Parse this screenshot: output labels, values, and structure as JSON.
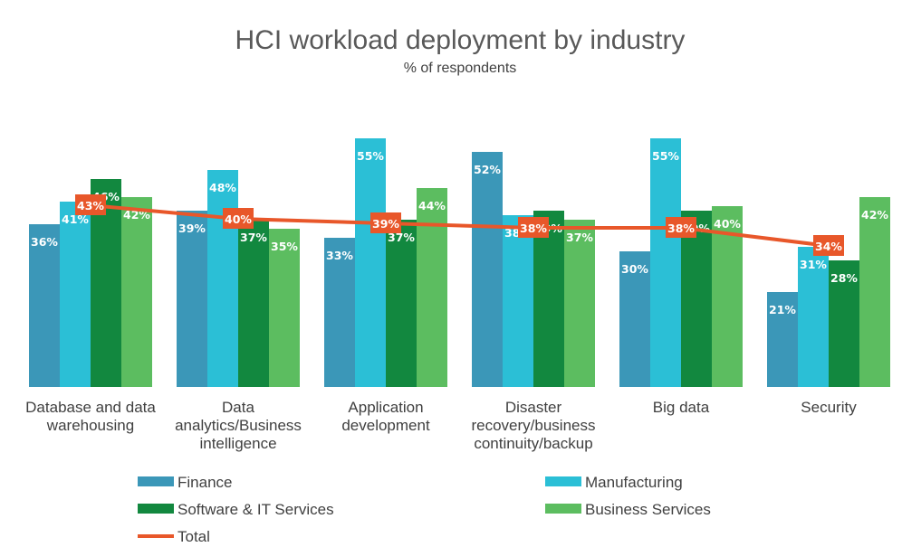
{
  "chart_data": {
    "type": "bar",
    "title": "HCI workload deployment by industry",
    "subtitle": "% of respondents",
    "categories": [
      [
        "Database and data",
        "warehousing"
      ],
      [
        "Data",
        "analytics/Business",
        "intelligence"
      ],
      [
        "Application",
        "development"
      ],
      [
        "Disaster",
        "recovery/business",
        "continuity/backup"
      ],
      [
        "Big data"
      ],
      [
        "Security"
      ]
    ],
    "series": [
      {
        "name": "Finance",
        "color": "#3b97b8",
        "values": [
          36,
          39,
          33,
          52,
          30,
          21
        ]
      },
      {
        "name": "Manufacturing",
        "color": "#2bbfd6",
        "values": [
          41,
          48,
          55,
          38,
          55,
          31
        ]
      },
      {
        "name": "Software & IT Services",
        "color": "#12883f",
        "values": [
          46,
          37,
          37,
          39,
          39,
          28
        ]
      },
      {
        "name": "Business Services",
        "color": "#5cbd60",
        "values": [
          42,
          35,
          44,
          37,
          40,
          42
        ]
      }
    ],
    "line_series": {
      "name": "Total",
      "color": "#e8572a",
      "values": [
        43,
        40,
        39,
        38,
        38,
        34
      ]
    },
    "value_suffix": "%",
    "ylim": [
      0,
      60
    ],
    "grid": false,
    "legend_position": "bottom"
  }
}
